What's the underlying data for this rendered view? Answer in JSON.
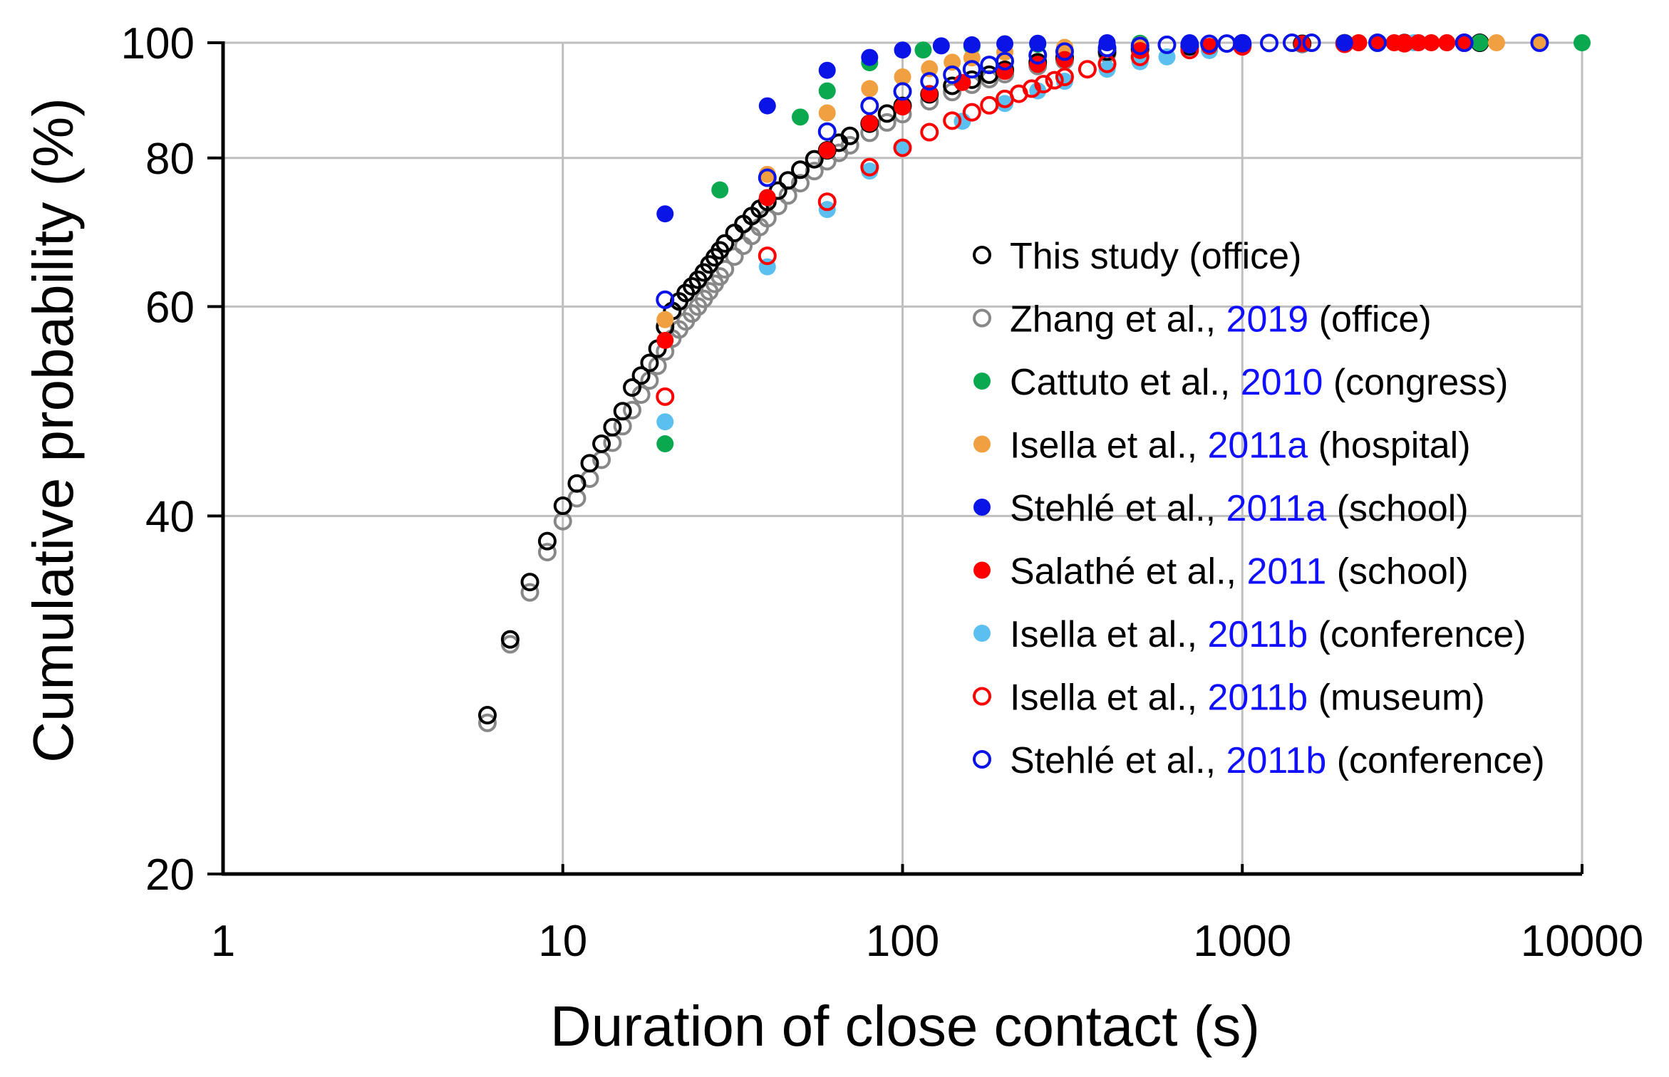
{
  "chart_data": {
    "type": "scatter",
    "title": "",
    "xlabel": "Duration of close contact (s)",
    "ylabel": "Cumulative probability (%)",
    "xscale": "log",
    "yscale": "log",
    "xlim": [
      1,
      10000
    ],
    "ylim": [
      20,
      100
    ],
    "xticks": [
      1,
      10,
      100,
      1000,
      10000
    ],
    "xtick_labels": [
      "1",
      "10",
      "100",
      "1000",
      "10000"
    ],
    "yticks": [
      20,
      40,
      60,
      80,
      100
    ],
    "ytick_labels": [
      "20",
      "40",
      "60",
      "80",
      "100"
    ],
    "grid": true,
    "legend_position": "center-right",
    "series": [
      {
        "id": "this-study",
        "legend_prefix": "This study (office)",
        "legend_year": "",
        "legend_suffix": "",
        "marker": "open",
        "color": "#000000",
        "x": [
          6,
          7,
          8,
          9,
          10,
          11,
          12,
          13,
          14,
          15,
          16,
          17,
          18,
          19,
          20,
          21,
          22,
          23,
          24,
          25,
          26,
          27,
          28,
          29,
          30,
          32,
          34,
          36,
          38,
          40,
          43,
          46,
          50,
          55,
          60,
          65,
          70,
          80,
          90,
          100,
          120,
          140,
          160,
          180,
          200,
          250,
          300,
          400,
          500,
          700,
          1000,
          1500,
          2000,
          3000,
          5000
        ],
        "y": [
          27.2,
          31.5,
          35.2,
          38.1,
          40.8,
          42.6,
          44.3,
          46.0,
          47.5,
          49.0,
          51.3,
          52.5,
          53.8,
          55.3,
          57.7,
          59.5,
          60.6,
          61.6,
          62.4,
          63.2,
          64.1,
          65.1,
          66.0,
          66.9,
          67.8,
          69.2,
          70.4,
          71.5,
          72.5,
          73.5,
          75.1,
          76.6,
          78.2,
          79.8,
          81.2,
          82.4,
          83.5,
          85.5,
          87.2,
          88.5,
          90.5,
          92.0,
          93.1,
          94.0,
          94.9,
          96.3,
          97.2,
          98.3,
          98.8,
          99.3,
          99.6,
          99.8,
          99.9,
          99.95,
          100
        ]
      },
      {
        "id": "zhang-2019",
        "legend_prefix": "Zhang et al., ",
        "legend_year": "2019",
        "legend_suffix": " (office)",
        "marker": "open",
        "color": "#888888",
        "x": [
          6,
          7,
          8,
          9,
          10,
          11,
          12,
          13,
          14,
          15,
          16,
          17,
          18,
          19,
          20,
          21,
          22,
          23,
          24,
          25,
          26,
          27,
          28,
          29,
          30,
          32,
          34,
          36,
          38,
          40,
          43,
          46,
          50,
          55,
          60,
          65,
          70,
          80,
          90,
          100,
          120,
          140,
          160,
          180,
          200,
          250,
          300,
          400,
          500,
          700,
          1000,
          1500,
          2000
        ],
        "y": [
          26.8,
          31.2,
          34.5,
          37.3,
          39.6,
          41.4,
          43.0,
          44.6,
          46.1,
          47.6,
          49.1,
          50.6,
          52.0,
          53.5,
          55.0,
          56.4,
          57.4,
          58.3,
          59.2,
          60.0,
          60.9,
          61.8,
          62.7,
          63.6,
          64.5,
          66.1,
          67.5,
          68.8,
          70.0,
          71.2,
          72.9,
          74.4,
          76.2,
          78.0,
          79.5,
          80.8,
          82.0,
          84.0,
          85.7,
          87.1,
          89.3,
          90.9,
          92.2,
          93.2,
          94.1,
          95.6,
          96.6,
          97.9,
          98.6,
          99.2,
          99.6,
          99.8,
          99.9
        ]
      },
      {
        "id": "cattuto-2010",
        "legend_prefix": "Cattuto et al., ",
        "legend_year": "2010",
        "legend_suffix": " (congress)",
        "marker": "filled",
        "color": "#0aa84f",
        "x": [
          20,
          29,
          50,
          60,
          80,
          115,
          160,
          250,
          500,
          1000,
          2000,
          5000,
          10000
        ],
        "y": [
          46.0,
          75.2,
          86.6,
          91.1,
          96.2,
          98.6,
          99.3,
          99.7,
          99.9,
          100,
          100,
          100,
          100
        ]
      },
      {
        "id": "isella-2011a",
        "legend_prefix": "Isella et al., ",
        "legend_year": "2011a",
        "legend_suffix": " (hospital)",
        "marker": "filled",
        "color": "#f0a040",
        "x": [
          20,
          40,
          60,
          80,
          100,
          120,
          140,
          160,
          200,
          300,
          500,
          1000,
          2000,
          5600,
          7500
        ],
        "y": [
          58.5,
          77.5,
          87.3,
          91.5,
          93.6,
          95.1,
          96.3,
          97.1,
          98.2,
          99.1,
          99.6,
          99.9,
          100,
          100,
          100
        ]
      },
      {
        "id": "stehle-2011a",
        "legend_prefix": "Stehlé et al., ",
        "legend_year": "2011a",
        "legend_suffix": " (school)",
        "marker": "filled",
        "color": "#0a14e6",
        "x": [
          20,
          40,
          60,
          80,
          100,
          130,
          160,
          200,
          250,
          400,
          700,
          1000,
          2000
        ],
        "y": [
          71.8,
          88.5,
          94.8,
          97.2,
          98.6,
          99.4,
          99.6,
          99.8,
          99.9,
          100,
          100,
          100,
          100
        ]
      },
      {
        "id": "salathe-2011",
        "legend_prefix": "Salathé et al., ",
        "legend_year": "2011",
        "legend_suffix": " (school)",
        "marker": "filled",
        "color": "#ff0000",
        "x": [
          20,
          40,
          60,
          80,
          100,
          120,
          150,
          200,
          250,
          300,
          500,
          800,
          1000,
          1500,
          2000,
          2200,
          2500,
          2800,
          3000,
          3300,
          3600,
          4000,
          4500
        ],
        "y": [
          56.2,
          74.1,
          81.2,
          85.6,
          88.3,
          90.6,
          92.6,
          94.6,
          95.9,
          96.8,
          98.5,
          99.3,
          99.6,
          99.8,
          99.9,
          100,
          100,
          100,
          100,
          100,
          100,
          100,
          100
        ]
      },
      {
        "id": "isella-2011b-conference",
        "legend_prefix": "Isella et al., ",
        "legend_year": "2011b",
        "legend_suffix": " (conference)",
        "marker": "filled",
        "color": "#5bc0f0",
        "x": [
          20,
          40,
          60,
          80,
          100,
          150,
          200,
          250,
          300,
          400,
          500,
          600,
          800,
          1000,
          1500,
          2500,
          3200,
          7500
        ],
        "y": [
          48.0,
          64.8,
          72.4,
          78.0,
          81.5,
          85.9,
          88.9,
          91.1,
          92.8,
          95.0,
          96.4,
          97.3,
          98.5,
          99.2,
          99.7,
          100,
          100,
          100
        ]
      },
      {
        "id": "isella-2011b-museum",
        "legend_prefix": "Isella et al., ",
        "legend_year": "2011b",
        "legend_suffix": " (museum)",
        "marker": "open",
        "color": "#ff0000",
        "x": [
          20,
          40,
          60,
          80,
          100,
          120,
          140,
          160,
          180,
          200,
          220,
          240,
          260,
          280,
          300,
          350,
          400,
          500,
          700,
          1000,
          2000,
          3000,
          4500
        ],
        "y": [
          50.4,
          66.2,
          73.5,
          78.6,
          81.6,
          84.1,
          86.0,
          87.4,
          88.6,
          89.7,
          90.6,
          91.5,
          92.3,
          93.0,
          93.6,
          95.0,
          96.0,
          97.3,
          98.6,
          99.3,
          99.8,
          99.9,
          100
        ]
      },
      {
        "id": "stehle-2011b",
        "legend_prefix": "Stehlé et al., ",
        "legend_year": "2011b",
        "legend_suffix": " (conference)",
        "marker": "open",
        "color": "#0a14e6",
        "x": [
          20,
          40,
          60,
          80,
          100,
          120,
          140,
          160,
          180,
          200,
          250,
          300,
          400,
          500,
          600,
          700,
          800,
          900,
          1000,
          1200,
          1400,
          1600,
          2500,
          4500,
          7500
        ],
        "y": [
          60.8,
          77.0,
          84.2,
          88.5,
          91.0,
          92.8,
          94.0,
          95.0,
          95.8,
          96.5,
          97.6,
          98.3,
          99.0,
          99.4,
          99.6,
          99.7,
          99.8,
          99.85,
          99.9,
          99.95,
          100,
          100,
          100,
          100,
          100
        ]
      }
    ]
  }
}
